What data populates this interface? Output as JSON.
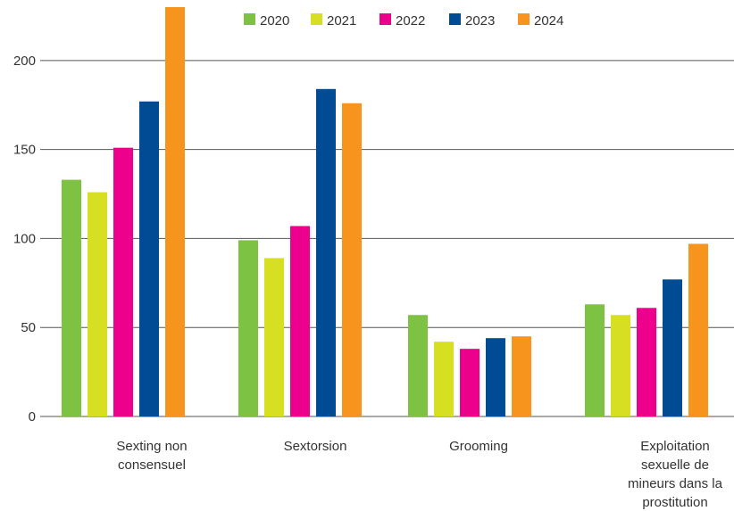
{
  "chart_data": {
    "type": "bar",
    "title": "",
    "xlabel": "",
    "ylabel": "",
    "ylim": [
      0,
      230
    ],
    "yticks": [
      0,
      50,
      100,
      150,
      200
    ],
    "grid": "horizontal",
    "legend_position": "top",
    "categories": [
      [
        "Sexting non",
        "consensuel"
      ],
      [
        "Sextorsion"
      ],
      [
        "Grooming"
      ],
      [
        "Exploitation",
        "sexuelle de",
        "mineurs dans la",
        "prostitution"
      ]
    ],
    "series": [
      {
        "name": "2020",
        "color": "#7dc242",
        "values": [
          133,
          99,
          57,
          63
        ]
      },
      {
        "name": "2021",
        "color": "#d7df23",
        "values": [
          126,
          89,
          42,
          57
        ]
      },
      {
        "name": "2022",
        "color": "#ec008c",
        "values": [
          151,
          107,
          38,
          61
        ]
      },
      {
        "name": "2023",
        "color": "#004b93",
        "values": [
          177,
          184,
          44,
          77
        ]
      },
      {
        "name": "2024",
        "color": "#f7941d",
        "values": [
          230,
          176,
          45,
          97
        ]
      }
    ]
  }
}
